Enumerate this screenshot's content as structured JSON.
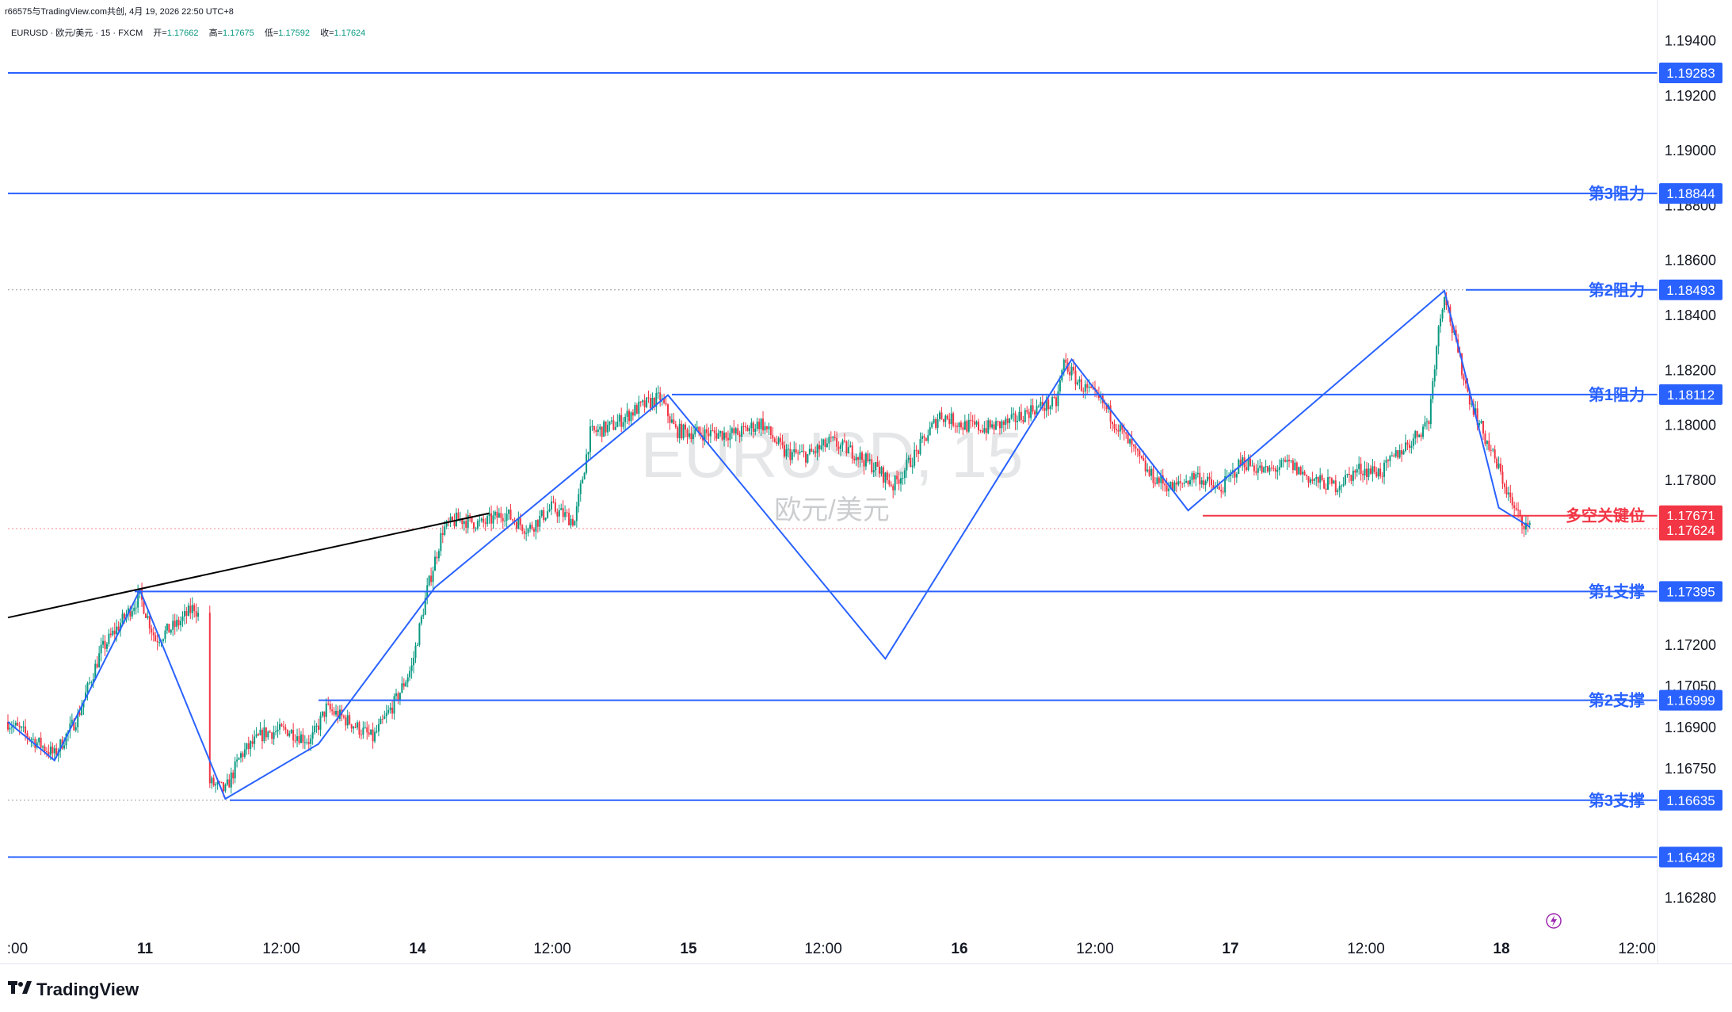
{
  "header": {
    "text": "r66575与TradingView.com共创, 4月 19, 2026 22:50 UTC+8"
  },
  "legend": {
    "symbol": "EURUSD · 欧元/美元 · 15 · FXCM",
    "open_label": "开=",
    "open": "1.17662",
    "high_label": "高=",
    "high": "1.17675",
    "low_label": "低=",
    "low": "1.17592",
    "close_label": "收=",
    "close": "1.17624"
  },
  "watermark": {
    "ticker": "EURUSD, 15",
    "name": "欧元/美元"
  },
  "footer": {
    "brand": "TradingView"
  },
  "colors": {
    "blue": "#2962ff",
    "red": "#f23645",
    "up": "#089981",
    "down": "#f23645",
    "text": "#131722"
  },
  "chart_data": {
    "type": "candlestick",
    "symbol": "EURUSD",
    "timeframe": "15",
    "ylim": [
      1.162,
      1.195
    ],
    "y_ticks": [
      "1.19400",
      "1.19200",
      "1.19000",
      "1.18800",
      "1.18600",
      "1.18400",
      "1.18200",
      "1.18000",
      "1.17800",
      "1.17200",
      "1.17050",
      "1.16900",
      "1.16750",
      "1.16280"
    ],
    "x_ticks": [
      ":00",
      "11",
      "12:00",
      "14",
      "12:00",
      "15",
      "12:00",
      "16",
      "12:00",
      "17",
      "12:00",
      "18",
      "12:00"
    ],
    "levels": [
      {
        "label": "",
        "value": 1.19283,
        "tag": "1.19283",
        "color": "#2962ff"
      },
      {
        "label": "第3阻力",
        "value": 1.18844,
        "tag": "1.18844",
        "color": "#2962ff"
      },
      {
        "label": "第2阻力",
        "value": 1.18493,
        "tag": "1.18493",
        "color": "#2962ff"
      },
      {
        "label": "第1阻力",
        "value": 1.18112,
        "tag": "1.18112",
        "color": "#2962ff"
      },
      {
        "label": "多空关键位",
        "value": 1.17671,
        "tag": "1.17671",
        "color": "#f23645"
      },
      {
        "label": "",
        "value": 1.17624,
        "tag": "1.17624",
        "color": "#f23645"
      },
      {
        "label": "第1支撑",
        "value": 1.17395,
        "tag": "1.17395",
        "color": "#2962ff"
      },
      {
        "label": "第2支撑",
        "value": 1.16999,
        "tag": "1.16999",
        "color": "#2962ff"
      },
      {
        "label": "第3支撑",
        "value": 1.16635,
        "tag": "1.16635",
        "color": "#2962ff"
      },
      {
        "label": "",
        "value": 1.16428,
        "tag": "1.16428",
        "color": "#2962ff"
      }
    ],
    "zigzag": [
      [
        0,
        1.1692
      ],
      [
        6,
        1.1678
      ],
      [
        17,
        1.174
      ],
      [
        28,
        1.1664
      ],
      [
        40,
        1.1684
      ],
      [
        55,
        1.1741
      ],
      [
        85,
        1.1811
      ],
      [
        113,
        1.1715
      ],
      [
        137,
        1.1824
      ],
      [
        152,
        1.1769
      ],
      [
        185,
        1.1849
      ],
      [
        192,
        1.177
      ],
      [
        196,
        1.1763
      ]
    ],
    "trendline": [
      [
        0,
        1.173
      ],
      [
        62,
        1.1768
      ]
    ],
    "price_path": [
      [
        0,
        1.1692
      ],
      [
        3,
        1.1686
      ],
      [
        6,
        1.168
      ],
      [
        9,
        1.1694
      ],
      [
        12,
        1.1718
      ],
      [
        15,
        1.173
      ],
      [
        17,
        1.1738
      ],
      [
        19,
        1.1722
      ],
      [
        22,
        1.1728
      ],
      [
        24,
        1.1734
      ],
      [
        25,
        1.1728
      ],
      [
        26,
        1.167
      ],
      [
        28,
        1.1667
      ],
      [
        30,
        1.168
      ],
      [
        33,
        1.1688
      ],
      [
        36,
        1.1689
      ],
      [
        39,
        1.1685
      ],
      [
        41,
        1.1697
      ],
      [
        44,
        1.1692
      ],
      [
        47,
        1.1686
      ],
      [
        50,
        1.17
      ],
      [
        52,
        1.1712
      ],
      [
        54,
        1.174
      ],
      [
        56,
        1.1762
      ],
      [
        58,
        1.1766
      ],
      [
        61,
        1.1764
      ],
      [
        64,
        1.1768
      ],
      [
        67,
        1.1762
      ],
      [
        70,
        1.177
      ],
      [
        73,
        1.1765
      ],
      [
        75,
        1.1797
      ],
      [
        78,
        1.18
      ],
      [
        81,
        1.1806
      ],
      [
        84,
        1.181
      ],
      [
        86,
        1.1798
      ],
      [
        90,
        1.1797
      ],
      [
        94,
        1.1797
      ],
      [
        97,
        1.1801
      ],
      [
        100,
        1.179
      ],
      [
        103,
        1.1789
      ],
      [
        106,
        1.1794
      ],
      [
        109,
        1.179
      ],
      [
        112,
        1.1784
      ],
      [
        114,
        1.1778
      ],
      [
        117,
        1.179
      ],
      [
        120,
        1.1804
      ],
      [
        123,
        1.18
      ],
      [
        126,
        1.1799
      ],
      [
        129,
        1.1801
      ],
      [
        132,
        1.1806
      ],
      [
        135,
        1.1808
      ],
      [
        136,
        1.1823
      ],
      [
        138,
        1.1815
      ],
      [
        141,
        1.1808
      ],
      [
        144,
        1.1795
      ],
      [
        147,
        1.1782
      ],
      [
        150,
        1.1777
      ],
      [
        153,
        1.1782
      ],
      [
        156,
        1.1776
      ],
      [
        159,
        1.1787
      ],
      [
        162,
        1.1783
      ],
      [
        165,
        1.1786
      ],
      [
        168,
        1.178
      ],
      [
        171,
        1.1778
      ],
      [
        174,
        1.1784
      ],
      [
        177,
        1.1783
      ],
      [
        179,
        1.179
      ],
      [
        181,
        1.1795
      ],
      [
        183,
        1.1802
      ],
      [
        184,
        1.183
      ],
      [
        185,
        1.1849
      ],
      [
        186,
        1.1835
      ],
      [
        188,
        1.1812
      ],
      [
        190,
        1.1797
      ],
      [
        192,
        1.1784
      ],
      [
        194,
        1.1769
      ],
      [
        196,
        1.1762
      ]
    ]
  }
}
